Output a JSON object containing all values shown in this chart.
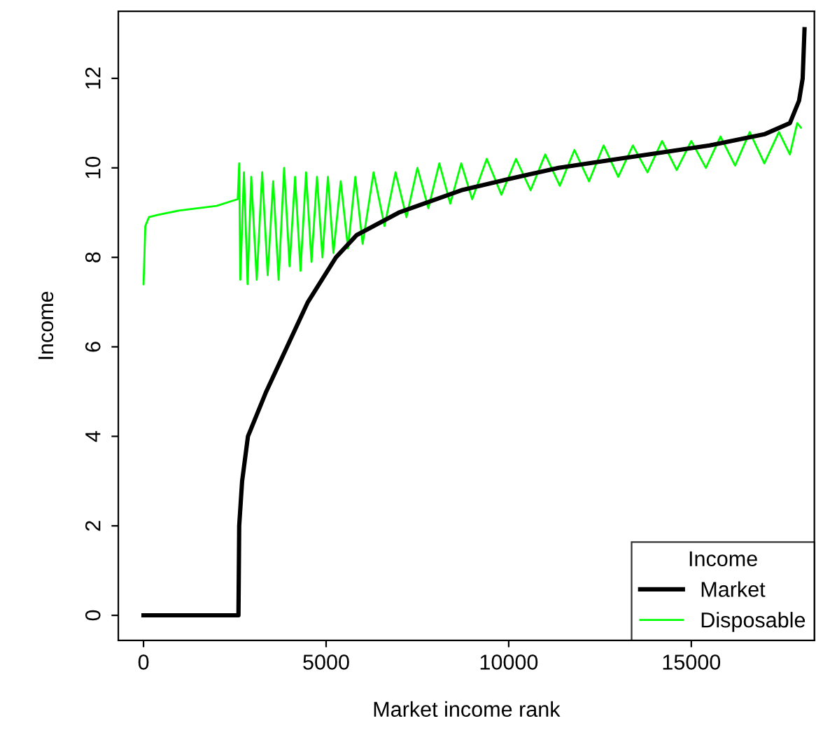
{
  "chart_data": {
    "type": "line",
    "xlabel": "Market income rank",
    "ylabel": "Income",
    "xlim": [
      -690,
      18370
    ],
    "ylim": [
      -0.56,
      13.5
    ],
    "xticks": [
      0,
      5000,
      10000,
      15000
    ],
    "yticks": [
      0,
      2,
      4,
      6,
      8,
      10,
      12
    ],
    "grid": false,
    "legend": "bottom right",
    "legend_title": "Income",
    "marker": "none",
    "line_style": "solid",
    "series": [
      {
        "name": "Market",
        "color": "#000000",
        "x": [
          0,
          2600,
          2620,
          2700,
          2860,
          3360,
          3930,
          4500,
          5270,
          5840,
          6990,
          8700,
          10000,
          11370,
          13000,
          15500,
          17000,
          17700,
          17950,
          18050,
          18100
        ],
        "values": [
          0,
          0,
          2,
          3,
          4,
          5,
          6,
          7,
          8,
          8.5,
          9,
          9.5,
          9.75,
          10,
          10.2,
          10.5,
          10.75,
          11,
          11.5,
          12,
          13.1
        ]
      },
      {
        "name": "Disposable",
        "color": "#00ff00",
        "x": [
          0,
          50,
          150,
          400,
          1000,
          2000,
          2580,
          2620,
          2650,
          2750,
          2850,
          2950,
          3100,
          3250,
          3400,
          3550,
          3700,
          3850,
          4000,
          4150,
          4300,
          4450,
          4600,
          4750,
          4900,
          5050,
          5200,
          5400,
          5600,
          5800,
          6000,
          6300,
          6600,
          6900,
          7200,
          7500,
          7800,
          8100,
          8400,
          8700,
          9000,
          9400,
          9800,
          10200,
          10600,
          11000,
          11400,
          11800,
          12200,
          12600,
          13000,
          13400,
          13800,
          14200,
          14600,
          15000,
          15400,
          15800,
          16200,
          16600,
          17000,
          17400,
          17700,
          17900,
          18000
        ],
        "values": [
          7.4,
          8.7,
          8.9,
          8.95,
          9.05,
          9.15,
          9.3,
          10.1,
          7.5,
          9.9,
          7.4,
          9.8,
          7.5,
          9.9,
          7.6,
          9.7,
          7.5,
          10.0,
          7.8,
          9.8,
          7.7,
          9.9,
          7.9,
          9.8,
          8.0,
          9.8,
          8.1,
          9.7,
          8.2,
          9.8,
          8.3,
          9.9,
          8.7,
          9.9,
          8.9,
          10.0,
          9.1,
          10.1,
          9.2,
          10.1,
          9.3,
          10.2,
          9.4,
          10.2,
          9.5,
          10.3,
          9.6,
          10.4,
          9.7,
          10.5,
          9.8,
          10.5,
          9.9,
          10.6,
          9.95,
          10.6,
          10.0,
          10.7,
          10.05,
          10.8,
          10.1,
          10.8,
          10.3,
          11.0,
          10.9
        ]
      }
    ]
  }
}
